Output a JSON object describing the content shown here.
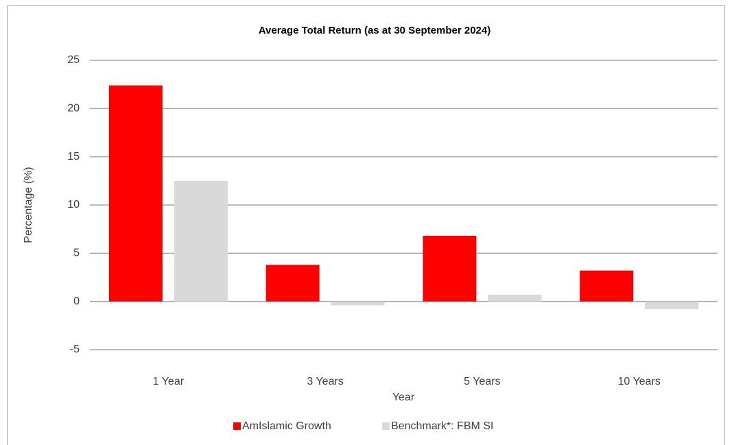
{
  "chart_data": {
    "type": "bar",
    "title": "Average Total Return (as at 30 September 2024)",
    "x_label": "Year",
    "y_label": "Percentage (%)",
    "categories": [
      "1 Year",
      "3 Years",
      "5 Years",
      "10 Years"
    ],
    "series": [
      {
        "name": "AmIslamic Growth",
        "color": "#ff0000",
        "values": [
          22.4,
          3.8,
          6.8,
          3.2
        ]
      },
      {
        "name": "Benchmark*: FBM SI",
        "color": "#d9d9d9",
        "values": [
          12.5,
          -0.4,
          0.7,
          -0.8
        ]
      }
    ],
    "ylim": [
      -5,
      25
    ],
    "yticks": [
      -5,
      0,
      5,
      10,
      15,
      20,
      25
    ],
    "grid": true,
    "legend": "bottom"
  }
}
